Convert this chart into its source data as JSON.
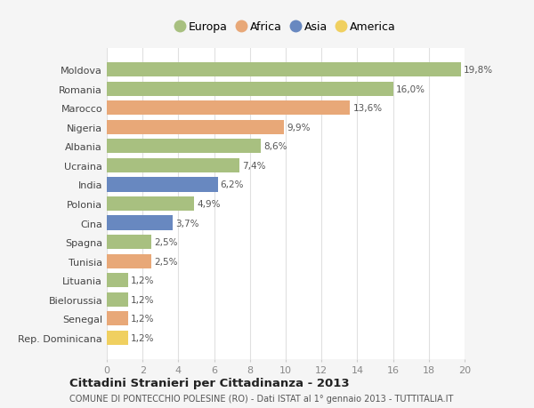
{
  "countries": [
    "Moldova",
    "Romania",
    "Marocco",
    "Nigeria",
    "Albania",
    "Ucraina",
    "India",
    "Polonia",
    "Cina",
    "Spagna",
    "Tunisia",
    "Lituania",
    "Bielorussia",
    "Senegal",
    "Rep. Dominicana"
  ],
  "values": [
    19.8,
    16.0,
    13.6,
    9.9,
    8.6,
    7.4,
    6.2,
    4.9,
    3.7,
    2.5,
    2.5,
    1.2,
    1.2,
    1.2,
    1.2
  ],
  "labels": [
    "19,8%",
    "16,0%",
    "13,6%",
    "9,9%",
    "8,6%",
    "7,4%",
    "6,2%",
    "4,9%",
    "3,7%",
    "2,5%",
    "2,5%",
    "1,2%",
    "1,2%",
    "1,2%",
    "1,2%"
  ],
  "continent": [
    "Europa",
    "Europa",
    "Africa",
    "Africa",
    "Europa",
    "Europa",
    "Asia",
    "Europa",
    "Asia",
    "Europa",
    "Africa",
    "Europa",
    "Europa",
    "Africa",
    "America"
  ],
  "colors": {
    "Europa": "#a8c080",
    "Africa": "#e8a878",
    "Asia": "#6888c0",
    "America": "#f0d060"
  },
  "legend_order": [
    "Europa",
    "Africa",
    "Asia",
    "America"
  ],
  "title": "Cittadini Stranieri per Cittadinanza - 2013",
  "subtitle": "COMUNE DI PONTECCHIO POLESINE (RO) - Dati ISTAT al 1° gennaio 2013 - TUTTITALIA.IT",
  "xlim": [
    0,
    20
  ],
  "xticks": [
    0,
    2,
    4,
    6,
    8,
    10,
    12,
    14,
    16,
    18,
    20
  ],
  "background_color": "#f5f5f5",
  "plot_background": "#ffffff",
  "grid_color": "#e0e0e0"
}
